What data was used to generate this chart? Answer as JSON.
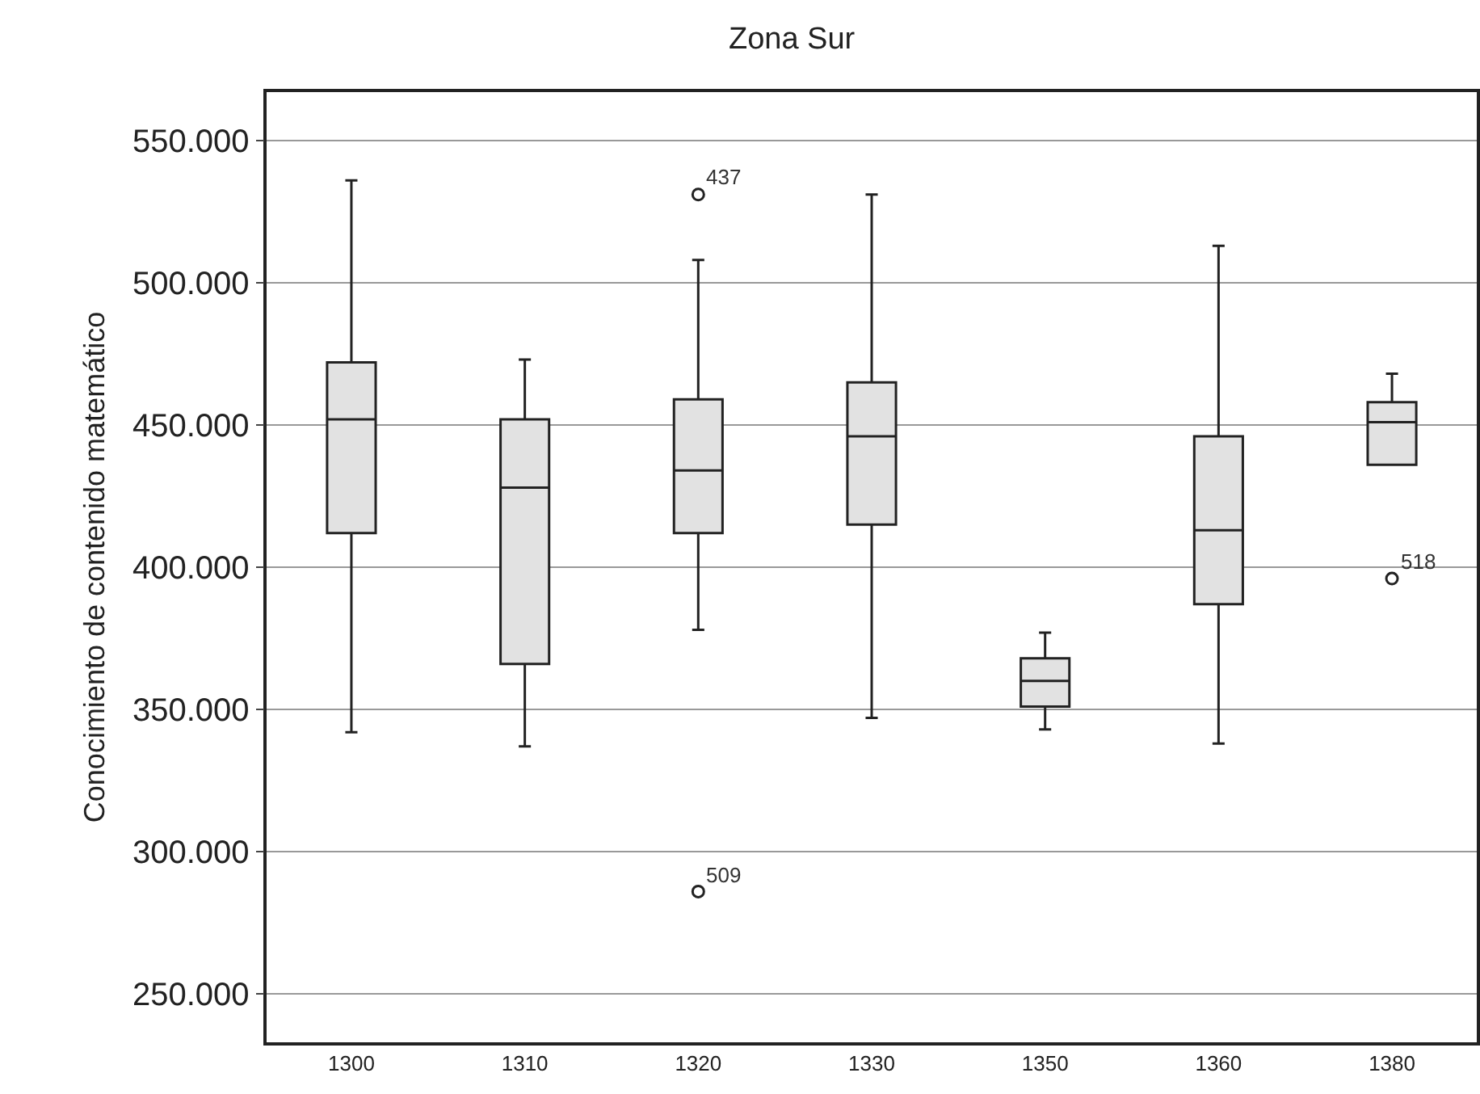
{
  "chart_data": {
    "type": "box",
    "title": "Zona Sur",
    "ylabel": "Conocimiento de contenido matemático",
    "categories": [
      "1300",
      "1310",
      "1320",
      "1330",
      "1350",
      "1360",
      "1380"
    ],
    "boxes": [
      {
        "low": 342,
        "q1": 412,
        "median": 452,
        "q3": 472,
        "high": 536
      },
      {
        "low": 337,
        "q1": 366,
        "median": 428,
        "q3": 452,
        "high": 473
      },
      {
        "low": 378,
        "q1": 412,
        "median": 434,
        "q3": 459,
        "high": 508
      },
      {
        "low": 347,
        "q1": 415,
        "median": 446,
        "q3": 465,
        "high": 531
      },
      {
        "low": 343,
        "q1": 351,
        "median": 360,
        "q3": 368,
        "high": 377
      },
      {
        "low": 338,
        "q1": 387,
        "median": 413,
        "q3": 446,
        "high": 513
      },
      {
        "low": 436,
        "q1": 436,
        "median": 451,
        "q3": 458,
        "high": 468
      }
    ],
    "series": [
      {
        "type": "scatter",
        "values": [
          null,
          null,
          531,
          null,
          null,
          null,
          null
        ],
        "color": "#222222"
      },
      {
        "type": "scatter",
        "values": [
          null,
          null,
          286,
          null,
          null,
          null,
          396
        ],
        "color": "#222222"
      }
    ],
    "color": "#e2e2e2",
    "ylim": [
      233,
      567
    ],
    "yticks": [
      {
        "value": 250,
        "label": "250.000"
      },
      {
        "value": 300,
        "label": "300.000"
      },
      {
        "value": 350,
        "label": "350.000"
      },
      {
        "value": 400,
        "label": "400.000"
      },
      {
        "value": 450,
        "label": "450.000"
      },
      {
        "value": 500,
        "label": "500.000"
      },
      {
        "value": 550,
        "label": "550.000"
      }
    ],
    "grid": "y",
    "marker": "circle",
    "annotations": [
      {
        "text": "437",
        "x": "1320",
        "y": 531
      },
      {
        "text": "509",
        "x": "1320",
        "y": 286
      },
      {
        "text": "518",
        "x": "1380",
        "y": 396
      }
    ]
  }
}
